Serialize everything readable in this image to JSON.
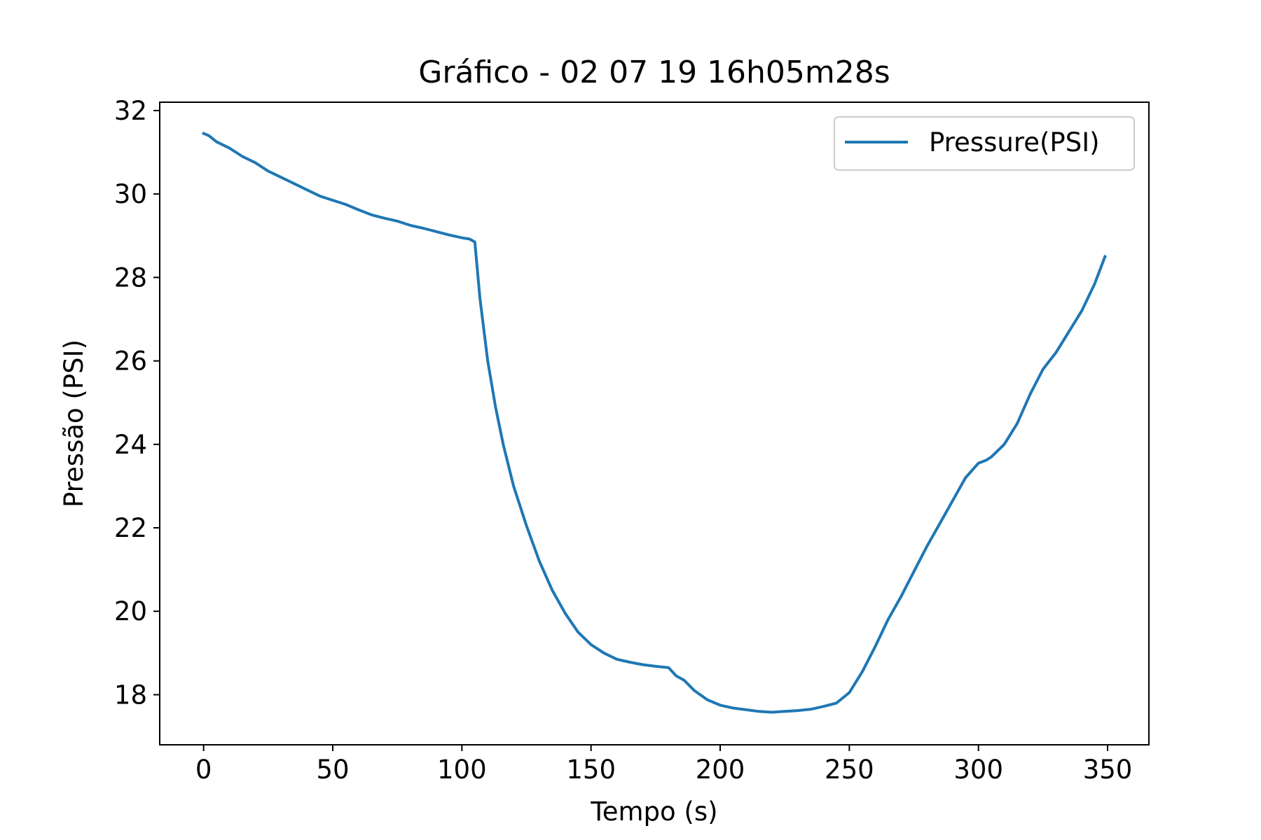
{
  "chart_data": {
    "type": "line",
    "title": "Gráfico - 02 07 19 16h05m28s",
    "xlabel": "Tempo (s)",
    "ylabel": "Pressão (PSI)",
    "xlim": [
      -17,
      366
    ],
    "ylim": [
      16.8,
      32.2
    ],
    "xticks": [
      0,
      50,
      100,
      150,
      200,
      250,
      300,
      350
    ],
    "yticks": [
      18,
      20,
      22,
      24,
      26,
      28,
      30,
      32
    ],
    "grid": false,
    "legend_position": "top-right",
    "series": [
      {
        "name": "Pressure(PSI)",
        "color": "#1f77b4",
        "x": [
          0,
          2,
          5,
          10,
          15,
          20,
          25,
          30,
          35,
          40,
          45,
          50,
          55,
          60,
          65,
          70,
          75,
          80,
          85,
          90,
          95,
          100,
          103,
          105,
          107,
          110,
          113,
          116,
          120,
          125,
          130,
          135,
          140,
          145,
          150,
          155,
          160,
          165,
          170,
          175,
          180,
          183,
          186,
          190,
          195,
          200,
          205,
          210,
          215,
          220,
          225,
          230,
          235,
          240,
          245,
          250,
          255,
          260,
          265,
          270,
          275,
          280,
          285,
          290,
          295,
          300,
          303,
          305,
          310,
          315,
          320,
          325,
          330,
          335,
          340,
          345,
          349
        ],
        "y": [
          31.45,
          31.4,
          31.25,
          31.1,
          30.9,
          30.75,
          30.55,
          30.4,
          30.25,
          30.1,
          29.95,
          29.85,
          29.75,
          29.62,
          29.5,
          29.42,
          29.35,
          29.25,
          29.18,
          29.1,
          29.02,
          28.95,
          28.92,
          28.85,
          27.5,
          26.0,
          24.9,
          24.0,
          23.0,
          22.05,
          21.2,
          20.5,
          19.95,
          19.5,
          19.2,
          19.0,
          18.85,
          18.78,
          18.72,
          18.68,
          18.65,
          18.45,
          18.35,
          18.1,
          17.88,
          17.75,
          17.68,
          17.64,
          17.6,
          17.58,
          17.6,
          17.62,
          17.65,
          17.72,
          17.8,
          18.05,
          18.55,
          19.15,
          19.8,
          20.35,
          20.95,
          21.55,
          22.1,
          22.65,
          23.2,
          23.55,
          23.62,
          23.7,
          24.0,
          24.5,
          25.2,
          25.8,
          26.2,
          26.7,
          27.2,
          27.85,
          28.5
        ]
      }
    ]
  }
}
